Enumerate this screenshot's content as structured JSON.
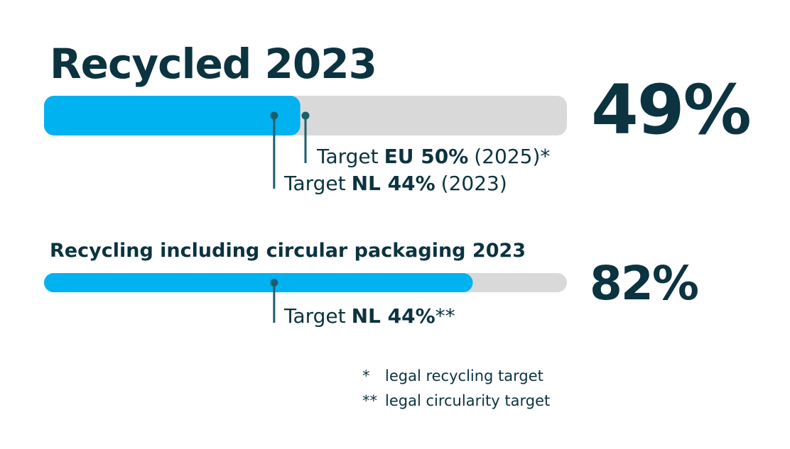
{
  "xlim": [
    0,
    100
  ],
  "panels": [
    {
      "title": "Recycled 2023",
      "value": 49,
      "value_label": "49%",
      "targets": [
        {
          "value": 50,
          "prefix": "Target",
          "emphasis": "EU 50%",
          "suffix": "(2025)*"
        },
        {
          "value": 44,
          "prefix": "Target",
          "emphasis": "NL 44%",
          "suffix": "(2023)"
        }
      ]
    },
    {
      "title": "Recycling including circular packaging 2023",
      "value": 82,
      "value_label": "82%",
      "targets": [
        {
          "value": 44,
          "prefix": "Target",
          "emphasis": "NL 44%",
          "suffix": "**"
        }
      ]
    }
  ],
  "footnotes": [
    {
      "mark": "*",
      "text": "legal recycling target"
    },
    {
      "mark": "**",
      "text": "legal circularity target"
    }
  ]
}
